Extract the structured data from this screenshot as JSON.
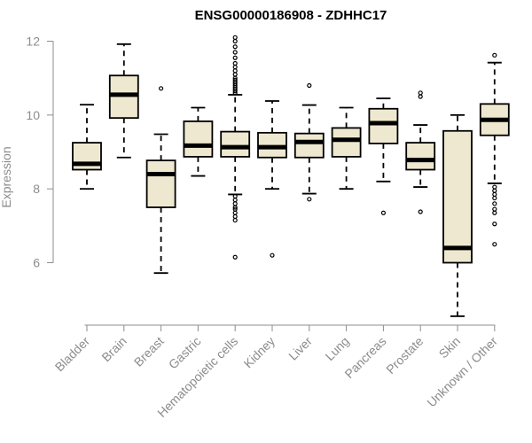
{
  "chart_data": {
    "type": "box",
    "title": "ENSG00000186908 - ZDHHC17",
    "xlabel": "",
    "ylabel": "Expression",
    "ylim": [
      4.2,
      12.3
    ],
    "yticks": [
      6,
      8,
      10,
      12
    ],
    "categories": [
      "Bladder",
      "Brain",
      "Breast",
      "Gastric",
      "Hematopoietic cells",
      "Kidney",
      "Liver",
      "Lung",
      "Pancreas",
      "Prostate",
      "Skin",
      "Unknown / Other"
    ],
    "box_fill": "#eee8d0",
    "series": [
      {
        "name": "Bladder",
        "min": 8.0,
        "q1": 8.52,
        "median": 8.68,
        "q3": 9.25,
        "max": 10.28,
        "outliers": []
      },
      {
        "name": "Brain",
        "min": 8.85,
        "q1": 9.92,
        "median": 10.55,
        "q3": 11.07,
        "max": 11.92,
        "outliers": []
      },
      {
        "name": "Breast",
        "min": 5.72,
        "q1": 7.5,
        "median": 8.4,
        "q3": 8.77,
        "max": 9.48,
        "outliers": [
          10.72
        ]
      },
      {
        "name": "Gastric",
        "min": 8.35,
        "q1": 8.87,
        "median": 9.17,
        "q3": 9.83,
        "max": 10.2,
        "outliers": []
      },
      {
        "name": "Hematopoietic cells",
        "min": 7.85,
        "q1": 8.87,
        "median": 9.13,
        "q3": 9.55,
        "max": 10.55,
        "outliers": [
          12.1,
          12.0,
          11.85,
          11.7,
          11.55,
          11.4,
          11.3,
          11.2,
          11.1,
          11.0,
          10.95,
          10.9,
          10.85,
          10.8,
          10.75,
          10.7,
          10.65,
          10.6,
          7.8,
          7.7,
          7.6,
          7.5,
          7.45,
          7.35,
          7.25,
          7.15,
          6.15
        ]
      },
      {
        "name": "Kidney",
        "min": 8.0,
        "q1": 8.85,
        "median": 9.13,
        "q3": 9.52,
        "max": 10.38,
        "outliers": [
          6.2
        ]
      },
      {
        "name": "Liver",
        "min": 7.87,
        "q1": 8.85,
        "median": 9.27,
        "q3": 9.5,
        "max": 10.27,
        "outliers": [
          10.8,
          7.72
        ]
      },
      {
        "name": "Lung",
        "min": 8.0,
        "q1": 8.87,
        "median": 9.33,
        "q3": 9.65,
        "max": 10.2,
        "outliers": []
      },
      {
        "name": "Pancreas",
        "min": 8.2,
        "q1": 9.23,
        "median": 9.78,
        "q3": 10.17,
        "max": 10.45,
        "outliers": [
          7.35
        ]
      },
      {
        "name": "Prostate",
        "min": 8.05,
        "q1": 8.52,
        "median": 8.78,
        "q3": 9.25,
        "max": 9.73,
        "outliers": [
          10.6,
          10.5,
          7.38
        ]
      },
      {
        "name": "Skin",
        "min": 4.55,
        "q1": 6.0,
        "median": 6.4,
        "q3": 9.57,
        "max": 10.0,
        "outliers": []
      },
      {
        "name": "Unknown / Other",
        "min": 8.15,
        "q1": 9.45,
        "median": 9.87,
        "q3": 10.3,
        "max": 11.42,
        "outliers": [
          11.62,
          8.05,
          7.95,
          7.85,
          7.75,
          7.6,
          7.45,
          7.35,
          7.05,
          6.5
        ]
      }
    ]
  }
}
